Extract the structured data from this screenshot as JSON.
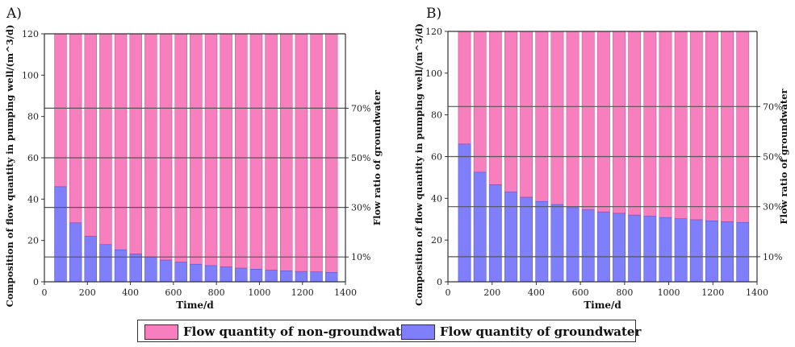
{
  "colors": {
    "non_groundwater": "#F77FBE",
    "groundwater": "#7F7FFB",
    "axis": "#333333",
    "refline": "#555555"
  },
  "legend": {
    "non_groundwater": "Flow quantity of non-groundwater",
    "groundwater": "Flow quantity of groundwater"
  },
  "chart_data": [
    {
      "panel_label": "A)",
      "type": "bar",
      "stacked": true,
      "xlabel": "Time/d",
      "ylabel": "Composition of flow quantity in pumping well/(m^3/d)",
      "y2label": "Flow ratio of groundwater",
      "xlim": [
        0,
        1400
      ],
      "ylim": [
        0,
        120
      ],
      "xticks": [
        0,
        200,
        400,
        600,
        800,
        1000,
        1200,
        1400
      ],
      "yticks": [
        0,
        20,
        40,
        60,
        80,
        100,
        120
      ],
      "ratio_lines": [
        {
          "label": "10%",
          "y": 12
        },
        {
          "label": "30%",
          "y": 36
        },
        {
          "label": "50%",
          "y": 60
        },
        {
          "label": "70%",
          "y": 84
        }
      ],
      "x": [
        75,
        145,
        215,
        285,
        355,
        425,
        495,
        565,
        635,
        705,
        775,
        845,
        915,
        985,
        1055,
        1125,
        1195,
        1265,
        1335
      ],
      "series": [
        {
          "name": "Flow quantity of groundwater",
          "values": [
            46,
            28.5,
            22,
            18,
            15.5,
            13.5,
            12,
            10.5,
            9.5,
            8.5,
            7.8,
            7.2,
            6.6,
            6.1,
            5.6,
            5.3,
            5.0,
            4.8,
            4.5
          ]
        },
        {
          "name": "Flow quantity of non-groundwater",
          "values": [
            74,
            91.5,
            98,
            102,
            104.5,
            106.5,
            108,
            109.5,
            110.5,
            111.5,
            112.2,
            112.8,
            113.4,
            113.9,
            114.4,
            114.7,
            115.0,
            115.2,
            115.5
          ]
        }
      ]
    },
    {
      "panel_label": "B)",
      "type": "bar",
      "stacked": true,
      "xlabel": "Time/d",
      "ylabel": "Composition of flow quantity in pumping well/(m^3/d)",
      "y2label": "Flow ratio of groundwater",
      "xlim": [
        0,
        1400
      ],
      "ylim": [
        0,
        120
      ],
      "xticks": [
        0,
        200,
        400,
        600,
        800,
        1000,
        1200,
        1400
      ],
      "yticks": [
        0,
        20,
        40,
        60,
        80,
        100,
        120
      ],
      "ratio_lines": [
        {
          "label": "10%",
          "y": 12
        },
        {
          "label": "30%",
          "y": 36
        },
        {
          "label": "50%",
          "y": 60
        },
        {
          "label": "70%",
          "y": 84
        }
      ],
      "x": [
        75,
        145,
        215,
        285,
        355,
        425,
        495,
        565,
        635,
        705,
        775,
        845,
        915,
        985,
        1055,
        1125,
        1195,
        1265,
        1335
      ],
      "series": [
        {
          "name": "Flow quantity of groundwater",
          "values": [
            66,
            52.5,
            46.5,
            43,
            40.5,
            38.5,
            37,
            35.5,
            34.5,
            33.5,
            32.8,
            32,
            31.4,
            30.8,
            30.2,
            29.7,
            29.2,
            28.8,
            28.4
          ]
        },
        {
          "name": "Flow quantity of non-groundwater",
          "values": [
            54,
            67.5,
            73.5,
            77,
            79.5,
            81.5,
            83,
            84.5,
            85.5,
            86.5,
            87.2,
            88,
            88.6,
            89.2,
            89.8,
            90.3,
            90.8,
            91.2,
            91.6
          ]
        }
      ]
    }
  ]
}
